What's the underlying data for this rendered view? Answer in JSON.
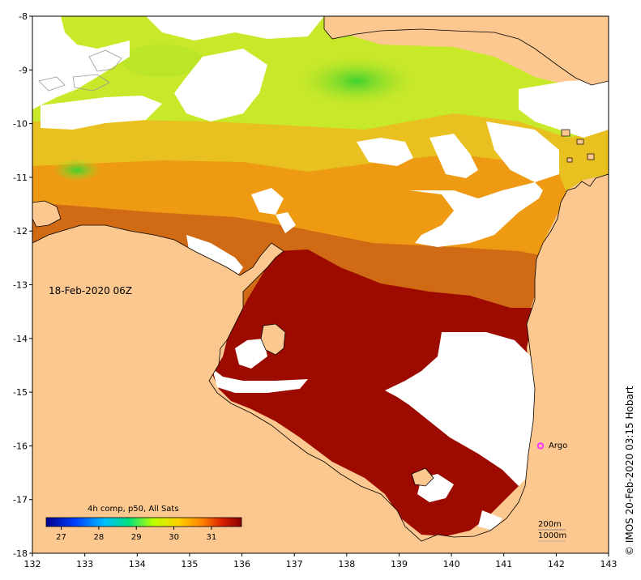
{
  "date_label": "18-Feb-2020 06Z",
  "credit": "© IMOS 20-Feb-2020 03:15 Hobart",
  "legend": {
    "title": "4h comp, p50, All Sats",
    "ticks": [
      27,
      28,
      29,
      30,
      31
    ],
    "range": [
      26.6,
      31.8
    ]
  },
  "marker": {
    "label": "Argo",
    "lon": 141.7,
    "lat": -16.0,
    "color": "#ff33ff"
  },
  "depth_labels": [
    "200m",
    "1000m"
  ],
  "axes": {
    "lon": [
      132,
      133,
      134,
      135,
      136,
      137,
      138,
      139,
      140,
      141,
      142,
      143
    ],
    "lat": [
      -8,
      -9,
      -10,
      -11,
      -12,
      -13,
      -14,
      -15,
      -16,
      -17,
      -18
    ]
  },
  "colors": {
    "land": "#fcc890",
    "cloud": "#ffffff",
    "sst_hot": "#9c0a00",
    "sst_warm_orange": "#e07c14",
    "sst_orange": "#ee9a10",
    "sst_yellow": "#e8d020",
    "sst_green": "#6ad82e"
  }
}
